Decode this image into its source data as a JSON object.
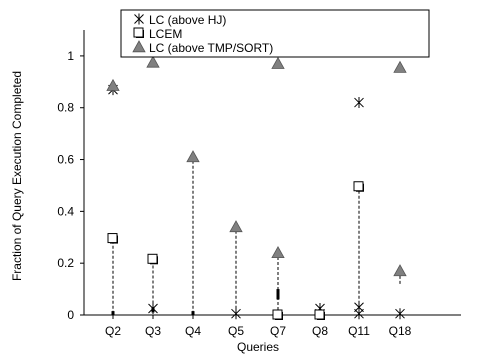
{
  "chart_data": {
    "type": "scatter",
    "xlabel": "Queries",
    "ylabel": "Fraction of Query Execution Completed",
    "ylim": [
      0,
      1.1
    ],
    "yticks": [
      0,
      0.2,
      0.4,
      0.6,
      0.8,
      1
    ],
    "ytick_labels": [
      "0",
      "0.2",
      "0.4",
      "0.6",
      "0.8",
      "1"
    ],
    "categories": [
      "Q2",
      "Q3",
      "Q4",
      "Q5",
      "Q7",
      "Q8",
      "Q11",
      "Q18"
    ],
    "legend_position": "top",
    "series": [
      {
        "name": "LC (above HJ)",
        "marker": "asterisk",
        "values": [
          0.87,
          0.025,
          null,
          0.005,
          null,
          0.025,
          0.82,
          0.005
        ],
        "extra_points": [
          {
            "category": "Q8",
            "value": 0.005
          },
          {
            "category": "Q11",
            "value": 0.03
          },
          {
            "category": "Q11",
            "value": 0.005
          }
        ]
      },
      {
        "name": "LCEM",
        "marker": "square",
        "values": [
          0.295,
          0.215,
          null,
          null,
          0.0,
          0.0,
          0.495,
          null
        ]
      },
      {
        "name": "LC  (above TMP/SORT)",
        "marker": "triangle",
        "values": [
          0.885,
          0.975,
          0.61,
          0.34,
          0.97,
          null,
          null,
          0.955
        ],
        "extra_points": [
          {
            "category": "Q7",
            "value": 0.24
          },
          {
            "category": "Q18",
            "value": 0.17
          }
        ]
      }
    ],
    "dashed_ranges": [
      {
        "category": "Q2",
        "from": 0.005,
        "to": 0.295
      },
      {
        "category": "Q3",
        "from": 0.025,
        "to": 0.215
      },
      {
        "category": "Q4",
        "from": 0.005,
        "to": 0.61
      },
      {
        "category": "Q5",
        "from": 0.005,
        "to": 0.34
      },
      {
        "category": "Q7",
        "from": 0.0,
        "to": 0.24
      },
      {
        "category": "Q11",
        "from": 0.005,
        "to": 0.495
      },
      {
        "category": "Q18",
        "from": 0.12,
        "to": 0.17
      }
    ],
    "small_bars": [
      {
        "category": "Q2",
        "from": 0.0,
        "to": 0.015
      },
      {
        "category": "Q3",
        "from": 0.01,
        "to": 0.03
      },
      {
        "category": "Q4",
        "from": 0.0,
        "to": 0.015
      },
      {
        "category": "Q7",
        "from": 0.06,
        "to": 0.1
      }
    ]
  }
}
